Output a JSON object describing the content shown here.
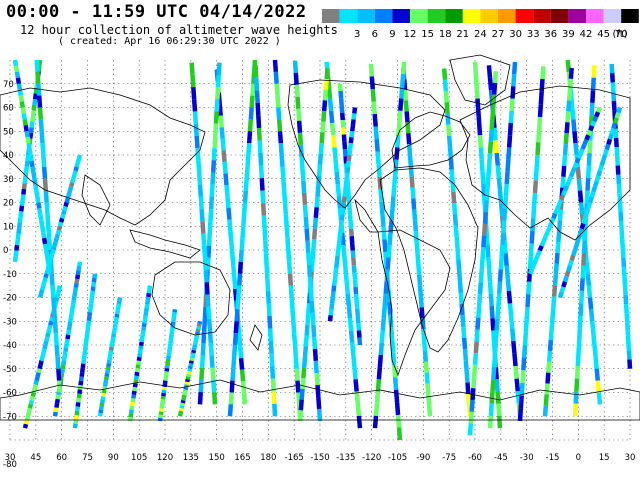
{
  "header": {
    "title": "00:00 - 11:59 UTC 04/14/2022",
    "subtitle": "12 hour collection of altimeter wave heights",
    "created": "( created: Apr 16 06:29:30 UTC 2022 )"
  },
  "legend": {
    "unit": "(ft)",
    "items": [
      {
        "label": "",
        "color": "#808080"
      },
      {
        "label": "3",
        "color": "#00e5ff"
      },
      {
        "label": "6",
        "color": "#00bfff"
      },
      {
        "label": "9",
        "color": "#0080ff"
      },
      {
        "label": "12",
        "color": "#0000d0"
      },
      {
        "label": "15",
        "color": "#66ff66"
      },
      {
        "label": "18",
        "color": "#22cc22"
      },
      {
        "label": "21",
        "color": "#009900"
      },
      {
        "label": "24",
        "color": "#ffff00"
      },
      {
        "label": "27",
        "color": "#ffcc00"
      },
      {
        "label": "30",
        "color": "#ff9900"
      },
      {
        "label": "33",
        "color": "#ff0000"
      },
      {
        "label": "36",
        "color": "#c00000"
      },
      {
        "label": "39",
        "color": "#800000"
      },
      {
        "label": "42",
        "color": "#a000a0"
      },
      {
        "label": "45",
        "color": "#ff66ff"
      },
      {
        "label": "70",
        "color": "#ccccff"
      },
      {
        "label": "",
        "color": "#000000"
      }
    ]
  },
  "axes": {
    "lon_labels": [
      "30",
      "45",
      "60",
      "75",
      "90",
      "105",
      "120",
      "135",
      "150",
      "165",
      "180",
      "-165",
      "-150",
      "-135",
      "-120",
      "-105",
      "-90",
      "-75",
      "-60",
      "-45",
      "-30",
      "-15",
      "0",
      "15",
      "30"
    ],
    "lat_labels": [
      "70",
      "60",
      "50",
      "40",
      "30",
      "20",
      "10",
      "0",
      "-10",
      "-20",
      "-30",
      "-40",
      "-50",
      "-60",
      "-70",
      "-80"
    ]
  }
}
